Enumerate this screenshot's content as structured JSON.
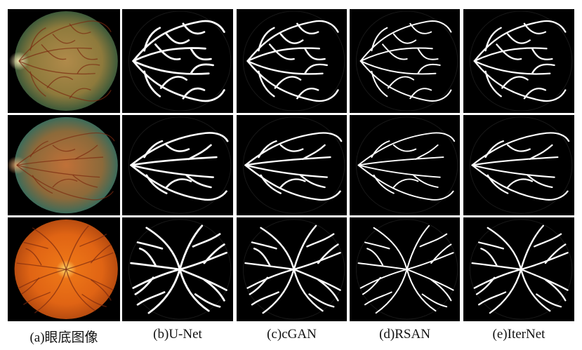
{
  "captions": [
    "(a)眼底图像",
    "(b)U-Net",
    "(c)cGAN",
    "(d)RSAN",
    "(e)IterNet"
  ],
  "rows": [
    {
      "fundus": {
        "center": "#b08a4a",
        "mid": "#8e7a3c",
        "edge": "#3d5a3a",
        "disc": "#f2e6b0"
      }
    },
    {
      "fundus": {
        "center": "#c07038",
        "mid": "#8c6a3a",
        "edge": "#3c6b5a",
        "disc": "#d8a06a"
      }
    },
    {
      "fundus": {
        "center": "#f07a18",
        "mid": "#e06414",
        "edge": "#b84c10",
        "disc": "#ffe070"
      }
    }
  ]
}
